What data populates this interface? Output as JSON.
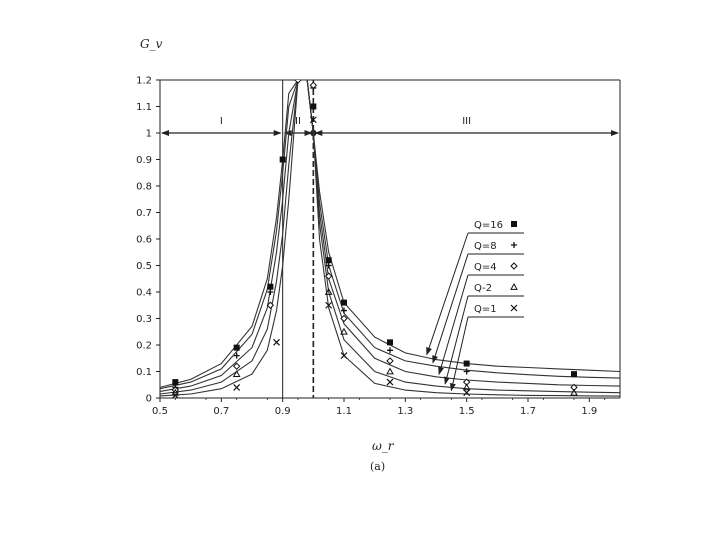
{
  "chart_data": {
    "type": "line",
    "ylabel": "G_v",
    "xlabel": "ω_r",
    "caption": "(a)",
    "xlim": [
      0.5,
      2.0
    ],
    "ylim": [
      0,
      1.2
    ],
    "x_ticks": [
      "0.5",
      "0.7",
      "0.9",
      "1.1",
      "1.3",
      "1.5",
      "1.7",
      "1.9"
    ],
    "x_tick_values": [
      0.5,
      0.7,
      0.9,
      1.1,
      1.3,
      1.5,
      1.7,
      1.9
    ],
    "y_ticks": [
      "0",
      "0.1",
      "0.2",
      "0.3",
      "0.4",
      "0.5",
      "0.6",
      "0.7",
      "0.8",
      "0.9",
      "1",
      "1.1",
      "1.2"
    ],
    "y_tick_values": [
      0,
      0.1,
      0.2,
      0.3,
      0.4,
      0.5,
      0.6,
      0.7,
      0.8,
      0.9,
      1,
      1.1,
      1.2
    ],
    "grid": false,
    "regions": [
      {
        "label": "I",
        "x_from": 0.5,
        "x_to": 0.9
      },
      {
        "label": "II",
        "x_from": 0.9,
        "x_to": 1.0
      },
      {
        "label": "III",
        "x_from": 1.0,
        "x_to": 2.0
      }
    ],
    "region_arrow_y": 1.0,
    "vertical_lines": [
      0.9,
      1.0
    ],
    "series": [
      {
        "name": "Q=16",
        "marker": "square",
        "curve": {
          "x": [
            0.5,
            0.6,
            0.7,
            0.8,
            0.85,
            0.88,
            0.9,
            0.92,
            0.95,
            0.98,
            1.0,
            1.02,
            1.05,
            1.1,
            1.2,
            1.3,
            1.4,
            1.5,
            1.6,
            1.7,
            1.8,
            1.9,
            2.0
          ],
          "y": [
            0.04,
            0.07,
            0.13,
            0.27,
            0.45,
            0.68,
            0.9,
            1.15,
            1.2,
            1.2,
            1.0,
            0.78,
            0.55,
            0.36,
            0.23,
            0.17,
            0.145,
            0.13,
            0.12,
            0.115,
            0.11,
            0.105,
            0.1
          ]
        },
        "points": {
          "x": [
            0.55,
            0.75,
            0.86,
            0.9,
            1.0,
            1.05,
            1.1,
            1.25,
            1.5,
            1.85
          ],
          "y": [
            0.06,
            0.19,
            0.42,
            0.9,
            1.1,
            0.52,
            0.36,
            0.21,
            0.13,
            0.09
          ]
        }
      },
      {
        "name": "Q=8",
        "marker": "plus",
        "curve": {
          "x": [
            0.5,
            0.6,
            0.7,
            0.8,
            0.85,
            0.88,
            0.9,
            0.92,
            0.95,
            0.98,
            1.0,
            1.02,
            1.05,
            1.1,
            1.2,
            1.3,
            1.4,
            1.5,
            1.6,
            1.7,
            1.8,
            1.9,
            2.0
          ],
          "y": [
            0.035,
            0.06,
            0.11,
            0.24,
            0.41,
            0.63,
            0.85,
            1.1,
            1.2,
            1.2,
            1.0,
            0.74,
            0.5,
            0.32,
            0.19,
            0.14,
            0.12,
            0.105,
            0.095,
            0.088,
            0.082,
            0.078,
            0.075
          ]
        },
        "points": {
          "x": [
            0.55,
            0.75,
            0.86,
            1.0,
            1.05,
            1.1,
            1.25,
            1.5
          ],
          "y": [
            0.04,
            0.16,
            0.4,
            1.17,
            0.5,
            0.33,
            0.18,
            0.1
          ]
        }
      },
      {
        "name": "Q=4",
        "marker": "diamond",
        "curve": {
          "x": [
            0.5,
            0.6,
            0.7,
            0.8,
            0.85,
            0.88,
            0.9,
            0.92,
            0.95,
            0.98,
            1.0,
            1.02,
            1.05,
            1.1,
            1.2,
            1.3,
            1.4,
            1.5,
            1.6,
            1.7,
            1.8,
            1.9,
            2.0
          ],
          "y": [
            0.025,
            0.045,
            0.085,
            0.19,
            0.34,
            0.55,
            0.75,
            1.0,
            1.2,
            1.2,
            1.0,
            0.7,
            0.45,
            0.28,
            0.15,
            0.1,
            0.08,
            0.068,
            0.06,
            0.055,
            0.05,
            0.047,
            0.045
          ]
        },
        "points": {
          "x": [
            0.55,
            0.75,
            0.86,
            0.95,
            1.0,
            1.05,
            1.1,
            1.25,
            1.5,
            1.85
          ],
          "y": [
            0.03,
            0.12,
            0.35,
            1.2,
            1.18,
            0.46,
            0.3,
            0.14,
            0.06,
            0.04
          ]
        }
      },
      {
        "name": "Q-2",
        "marker": "triangle",
        "curve": {
          "x": [
            0.5,
            0.6,
            0.7,
            0.8,
            0.85,
            0.88,
            0.9,
            0.92,
            0.95,
            0.98,
            1.0,
            1.02,
            1.05,
            1.1,
            1.2,
            1.3,
            1.4,
            1.5,
            1.6,
            1.7,
            1.8,
            1.9,
            2.0
          ],
          "y": [
            0.015,
            0.03,
            0.06,
            0.14,
            0.26,
            0.44,
            0.62,
            0.88,
            1.2,
            1.2,
            1.0,
            0.66,
            0.4,
            0.22,
            0.1,
            0.06,
            0.045,
            0.035,
            0.03,
            0.027,
            0.024,
            0.022,
            0.02
          ]
        },
        "points": {
          "x": [
            0.55,
            0.75,
            1.05,
            1.1,
            1.25,
            1.5,
            1.85
          ],
          "y": [
            0.02,
            0.09,
            0.4,
            0.25,
            0.1,
            0.04,
            0.02
          ]
        }
      },
      {
        "name": "Q=1",
        "marker": "x",
        "curve": {
          "x": [
            0.5,
            0.6,
            0.7,
            0.8,
            0.85,
            0.88,
            0.9,
            0.92,
            0.95,
            0.98,
            1.0,
            1.02,
            1.05,
            1.1,
            1.2,
            1.3,
            1.4,
            1.5,
            1.6,
            1.7,
            1.8,
            1.9,
            2.0
          ],
          "y": [
            0.008,
            0.015,
            0.035,
            0.09,
            0.18,
            0.33,
            0.5,
            0.75,
            1.2,
            1.2,
            1.0,
            0.6,
            0.34,
            0.16,
            0.055,
            0.03,
            0.02,
            0.015,
            0.012,
            0.01,
            0.009,
            0.008,
            0.007
          ]
        },
        "points": {
          "x": [
            0.55,
            0.75,
            0.88,
            1.0,
            1.05,
            1.1,
            1.25,
            1.5
          ],
          "y": [
            0.01,
            0.04,
            0.21,
            1.05,
            0.35,
            0.16,
            0.06,
            0.02
          ]
        }
      }
    ]
  }
}
